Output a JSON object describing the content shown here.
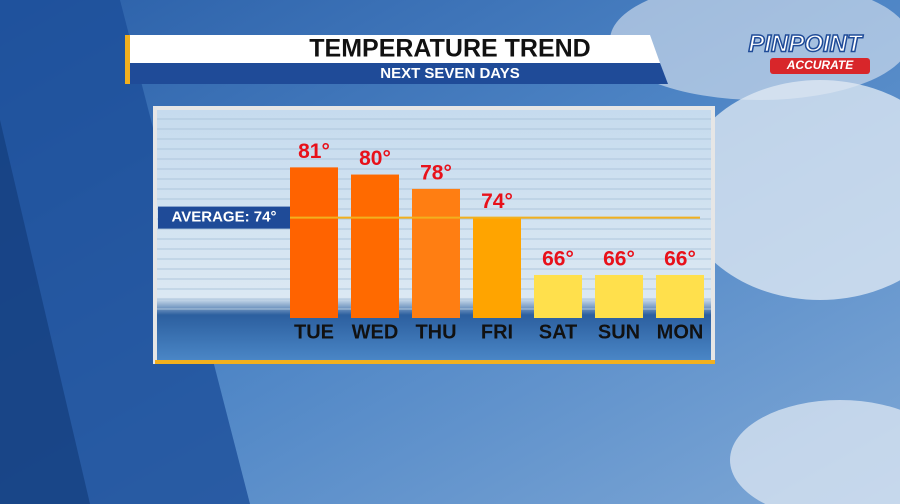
{
  "chart_data": {
    "type": "bar",
    "title": "TEMPERATURE TREND",
    "subtitle": "NEXT SEVEN DAYS",
    "categories": [
      "TUE",
      "WED",
      "THU",
      "FRI",
      "SAT",
      "SUN",
      "MON"
    ],
    "values": [
      81,
      80,
      78,
      74,
      66,
      66,
      66
    ],
    "value_labels": [
      "81°",
      "80°",
      "78°",
      "74°",
      "66°",
      "66°",
      "66°"
    ],
    "colors": [
      "#ff6300",
      "#ff6a00",
      "#ff7e12",
      "#ffa400",
      "#ffe04c",
      "#ffe04c",
      "#ffe04c"
    ],
    "ylim": [
      60,
      89
    ],
    "average": {
      "label": "AVERAGE: 74°",
      "value": 74,
      "color": "#f2b01e"
    },
    "logo": {
      "line1": "PINPOINT",
      "line2": "ACCURATE"
    }
  }
}
